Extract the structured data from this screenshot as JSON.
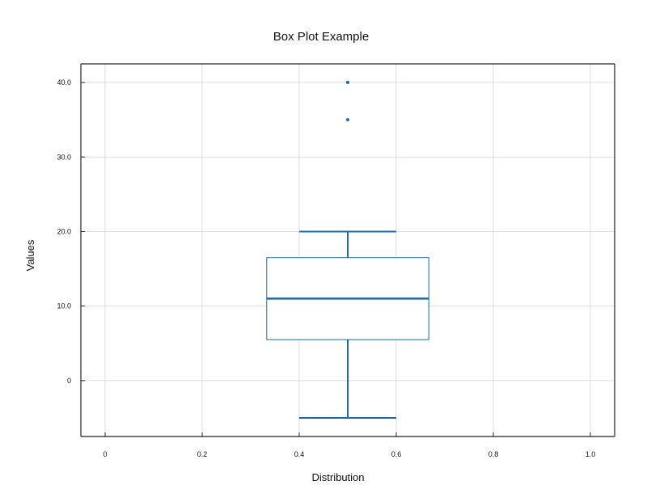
{
  "chart_data": {
    "type": "box",
    "title": "Box Plot Example",
    "xlabel": "Distribution",
    "ylabel": "Values",
    "xlim": [
      -0.05,
      1.05
    ],
    "ylim": [
      -7.5,
      42.5
    ],
    "x_ticks": [
      {
        "value": 0,
        "label": "0"
      },
      {
        "value": 0.2,
        "label": "0.2"
      },
      {
        "value": 0.4,
        "label": "0.4"
      },
      {
        "value": 0.6,
        "label": "0.6"
      },
      {
        "value": 0.8,
        "label": "0.8"
      },
      {
        "value": 1.0,
        "label": "1.0"
      }
    ],
    "y_ticks": [
      {
        "value": 0,
        "label": "0"
      },
      {
        "value": 10,
        "label": "10.0"
      },
      {
        "value": 20,
        "label": "20.0"
      },
      {
        "value": 30,
        "label": "30.0"
      },
      {
        "value": 40,
        "label": "40.0"
      }
    ],
    "grid": true,
    "color": "#1f6aa5",
    "boxes": [
      {
        "x": 0.5,
        "box_x_range": [
          0.333,
          0.667
        ],
        "whisker_cap_x_range": [
          0.4,
          0.6
        ],
        "whisker_low": -5,
        "q1": 5.5,
        "median": 11,
        "q3": 16.5,
        "whisker_high": 20,
        "outliers": [
          35,
          40
        ]
      }
    ]
  }
}
